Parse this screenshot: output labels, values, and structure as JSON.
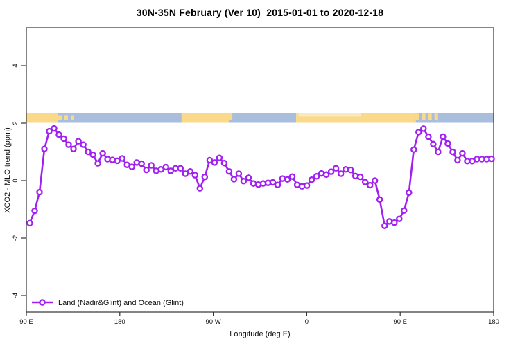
{
  "colors": {
    "series": "#A020F0",
    "land": "#FAD98B",
    "land_light": "#FCE9B8",
    "ocean": "#A9BEDC",
    "axis": "#333333",
    "text": "#000000"
  },
  "chart_data": {
    "type": "line",
    "title": "30N-35N February (Ver 10)  2015-01-01 to 2020-12-18",
    "xlabel": "Longitude (deg E)",
    "ylabel": "XCO2 - MLO trend (ppm)",
    "grid": false,
    "legend_position": "bottom-left",
    "legend": [
      {
        "label": "Land (Nadir&Glint) and Ocean (Glint)",
        "marker": "open-circle",
        "color": "#A020F0"
      }
    ],
    "x_axis": {
      "note": "longitude axis spanning 450 deg eastward from 90E",
      "range_deg": [
        0,
        450
      ],
      "ticks": [
        {
          "deg": 0,
          "label": "90 E"
        },
        {
          "deg": 90,
          "label": "180"
        },
        {
          "deg": 180,
          "label": "90 W"
        },
        {
          "deg": 270,
          "label": "0"
        },
        {
          "deg": 360,
          "label": "90 E"
        },
        {
          "deg": 450,
          "label": "180"
        }
      ]
    },
    "y_axis": {
      "range": [
        -4.55,
        5.3
      ],
      "ticks": [
        {
          "value": 4,
          "label": "4"
        },
        {
          "value": 2,
          "label": "2"
        },
        {
          "value": 0,
          "label": "0"
        },
        {
          "value": -2,
          "label": "-2"
        },
        {
          "value": -4,
          "label": "-4"
        }
      ]
    },
    "land_ocean_band": {
      "y_range_ppm": [
        2.0,
        2.35
      ],
      "segments": [
        {
          "from_deg": 0,
          "to_deg": 30.7,
          "type": "land"
        },
        {
          "from_deg": 30.7,
          "to_deg": 48,
          "type": "coast"
        },
        {
          "from_deg": 48,
          "to_deg": 149.5,
          "type": "ocean"
        },
        {
          "from_deg": 149.5,
          "to_deg": 195,
          "type": "land"
        },
        {
          "from_deg": 195,
          "to_deg": 202,
          "type": "coast"
        },
        {
          "from_deg": 202,
          "to_deg": 259.8,
          "type": "ocean"
        },
        {
          "from_deg": 259.8,
          "to_deg": 375,
          "type": "land"
        },
        {
          "from_deg": 375,
          "to_deg": 396.5,
          "type": "coast"
        },
        {
          "from_deg": 396.5,
          "to_deg": 450,
          "type": "ocean"
        }
      ],
      "light_top_overlays": [
        {
          "from_deg": 262,
          "to_deg": 322
        }
      ]
    },
    "series": [
      {
        "name": "Land (Nadir&Glint) and Ocean (Glint)",
        "x_deg_start": 3.3,
        "x_deg_end": 448,
        "values": [
          -1.48,
          -1.05,
          -0.4,
          1.1,
          1.72,
          1.82,
          1.6,
          1.46,
          1.25,
          1.1,
          1.37,
          1.25,
          1.0,
          0.9,
          0.6,
          0.95,
          0.75,
          0.72,
          0.69,
          0.77,
          0.55,
          0.48,
          0.63,
          0.59,
          0.37,
          0.53,
          0.34,
          0.39,
          0.47,
          0.34,
          0.43,
          0.43,
          0.24,
          0.32,
          0.19,
          -0.27,
          0.13,
          0.71,
          0.63,
          0.79,
          0.61,
          0.32,
          0.05,
          0.24,
          -0.02,
          0.1,
          -0.1,
          -0.14,
          -0.1,
          -0.08,
          -0.06,
          -0.15,
          0.07,
          0.04,
          0.14,
          -0.15,
          -0.2,
          -0.17,
          0.03,
          0.15,
          0.25,
          0.21,
          0.31,
          0.43,
          0.24,
          0.39,
          0.37,
          0.16,
          0.13,
          -0.05,
          -0.16,
          0.0,
          -0.66,
          -1.57,
          -1.42,
          -1.46,
          -1.33,
          -1.04,
          -0.42,
          1.08,
          1.69,
          1.81,
          1.53,
          1.27,
          1.0,
          1.53,
          1.29,
          1.0,
          0.71,
          0.95,
          0.68,
          0.68,
          0.75,
          0.75,
          0.75,
          0.76
        ]
      }
    ]
  }
}
